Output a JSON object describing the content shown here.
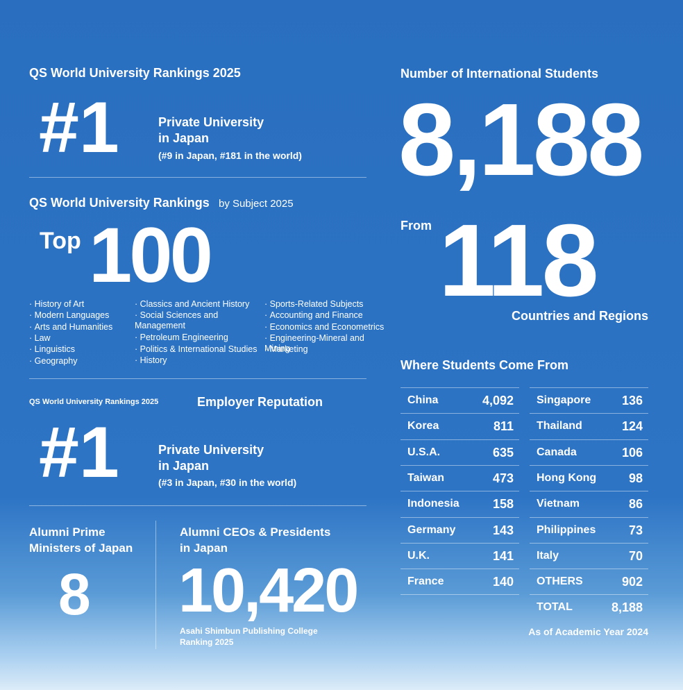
{
  "qs_2025": {
    "title": "QS World University Rankings 2025",
    "rank": "#1",
    "label_lines": [
      "Private University",
      "in Japan"
    ],
    "detail": "(#9 in Japan, #181 in the world)"
  },
  "qs_subject": {
    "title": "QS World University Rankings",
    "title_suffix": "by Subject 2025",
    "top": "Top",
    "number": "100",
    "subjects": [
      [
        "History of Art",
        "Modern Languages",
        "Arts and Humanities",
        "Law",
        "Linguistics",
        "Geography"
      ],
      [
        "Classics and Ancient History",
        "Social Sciences and Management",
        "Petroleum Engineering",
        "Politics & International Studies",
        "History"
      ],
      [
        "Sports-Related Subjects",
        "Accounting and Finance",
        "Economics and Econometrics",
        "Engineering-Mineral and Mining",
        "Marketing"
      ]
    ]
  },
  "employer": {
    "prefix": "QS World University Rankings 2025",
    "title": "Employer Reputation",
    "rank": "#1",
    "label_lines": [
      "Private University",
      "in Japan"
    ],
    "detail": "(#3 in Japan, #30 in the world)"
  },
  "alumni_pm": {
    "title_lines": [
      "Alumni Prime",
      "Ministers of Japan"
    ],
    "value": "8"
  },
  "alumni_ceo": {
    "title_lines": [
      "Alumni CEOs & Presidents",
      "in Japan"
    ],
    "value": "10,420",
    "source_lines": [
      "Asahi Shimbun Publishing College",
      "Ranking 2025"
    ]
  },
  "international": {
    "title": "Number of International Students",
    "total": "8,188",
    "from": "From",
    "countries": "118",
    "countries_label": "Countries and Regions"
  },
  "origins": {
    "title": "Where Students Come From",
    "left": [
      [
        "China",
        "4,092"
      ],
      [
        "Korea",
        "811"
      ],
      [
        "U.S.A.",
        "635"
      ],
      [
        "Taiwan",
        "473"
      ],
      [
        "Indonesia",
        "158"
      ],
      [
        "Germany",
        "143"
      ],
      [
        "U.K.",
        "141"
      ],
      [
        "France",
        "140"
      ]
    ],
    "right": [
      [
        "Singapore",
        "136"
      ],
      [
        "Thailand",
        "124"
      ],
      [
        "Canada",
        "106"
      ],
      [
        "Hong Kong",
        "98"
      ],
      [
        "Vietnam",
        "86"
      ],
      [
        "Philippines",
        "73"
      ],
      [
        "Italy",
        "70"
      ],
      [
        "OTHERS",
        "902"
      ]
    ],
    "total_label": "TOTAL",
    "total": "8,188",
    "note": "As of Academic Year 2024"
  }
}
